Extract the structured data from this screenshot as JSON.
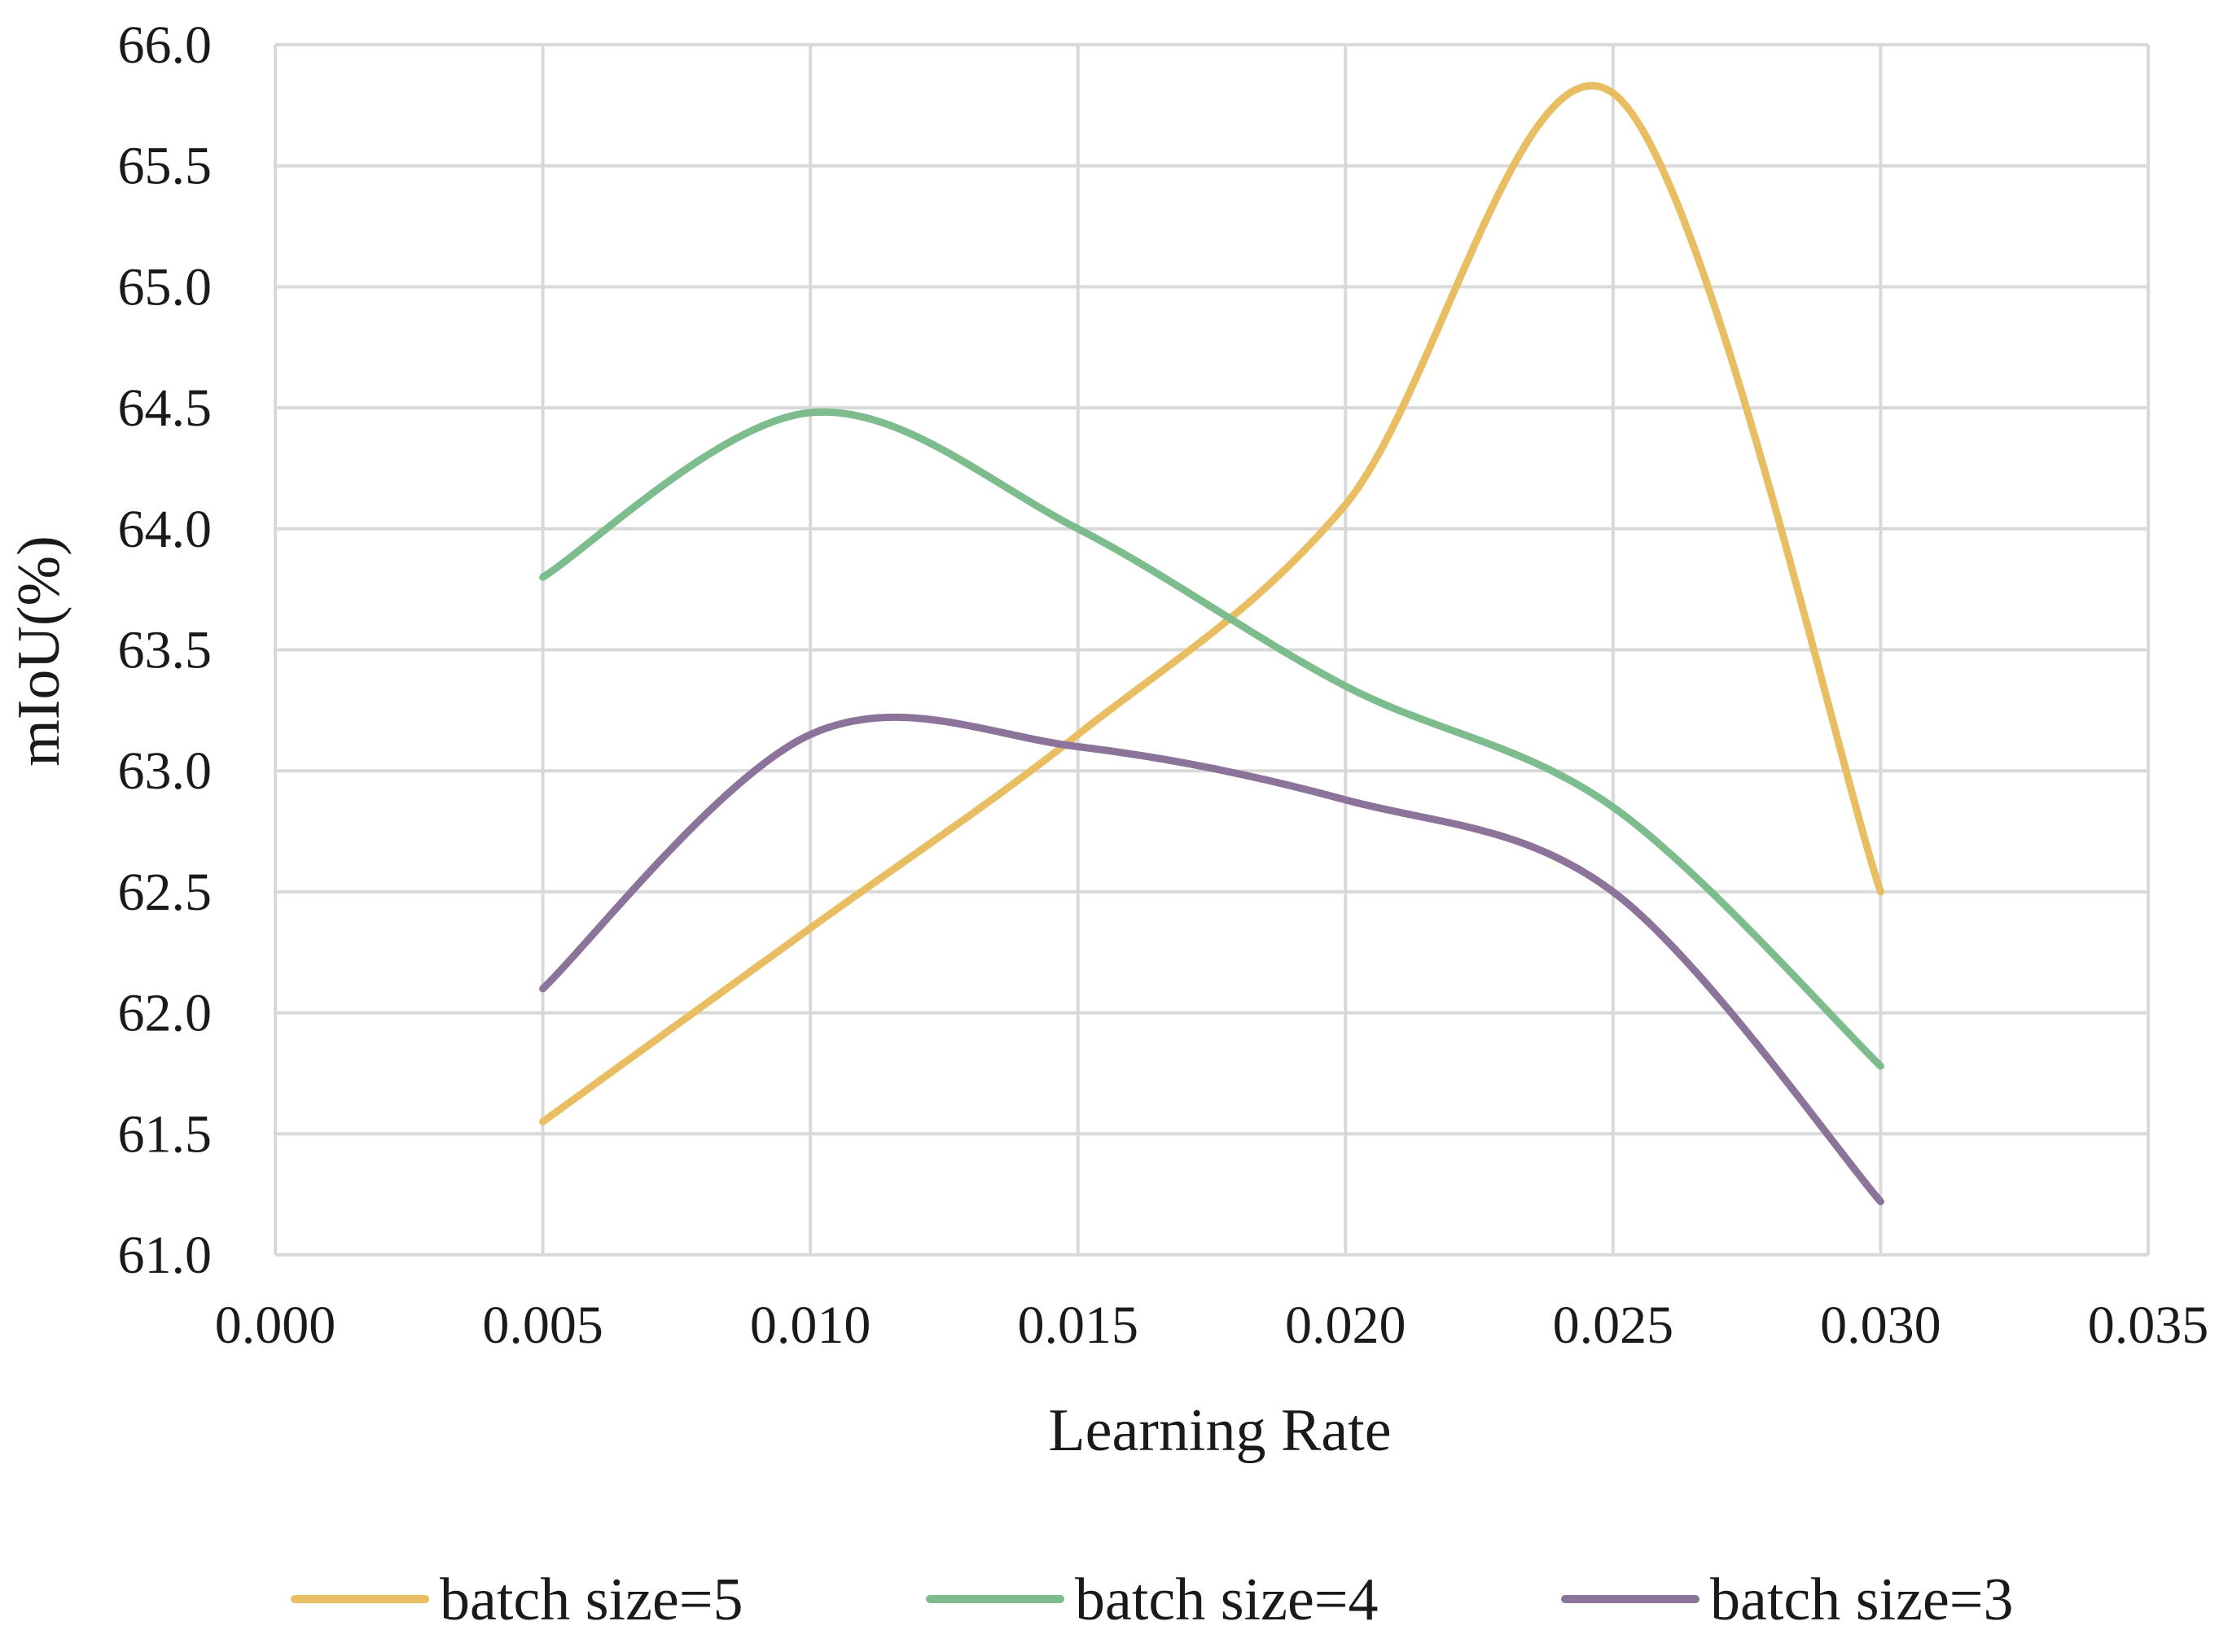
{
  "chart_data": {
    "type": "line",
    "smoothed": true,
    "title": "",
    "xlabel": "Learning Rate",
    "ylabel": "mIoU(%)",
    "xlim": [
      0.0,
      0.035
    ],
    "ylim": [
      61.0,
      66.0
    ],
    "grid": true,
    "legend_position": "bottom",
    "x_ticks": [
      "0.000",
      "0.005",
      "0.010",
      "0.015",
      "0.020",
      "0.025",
      "0.030",
      "0.035"
    ],
    "y_ticks": [
      "61.0",
      "61.5",
      "62.0",
      "62.5",
      "63.0",
      "63.5",
      "64.0",
      "64.5",
      "65.0",
      "65.5",
      "66.0"
    ],
    "x": [
      0.005,
      0.01,
      0.015,
      0.02,
      0.025,
      0.03
    ],
    "series": [
      {
        "name": "batch size=5",
        "color": "#E9BE62",
        "values": [
          61.55,
          62.35,
          63.15,
          64.1,
          65.8,
          62.5
        ]
      },
      {
        "name": "batch size=4",
        "color": "#7DBC8D",
        "values": [
          63.8,
          64.48,
          64.0,
          63.35,
          62.85,
          61.78
        ]
      },
      {
        "name": "batch size=3",
        "color": "#8C7399",
        "values": [
          62.1,
          63.15,
          63.1,
          62.88,
          62.5,
          61.22
        ]
      }
    ]
  }
}
